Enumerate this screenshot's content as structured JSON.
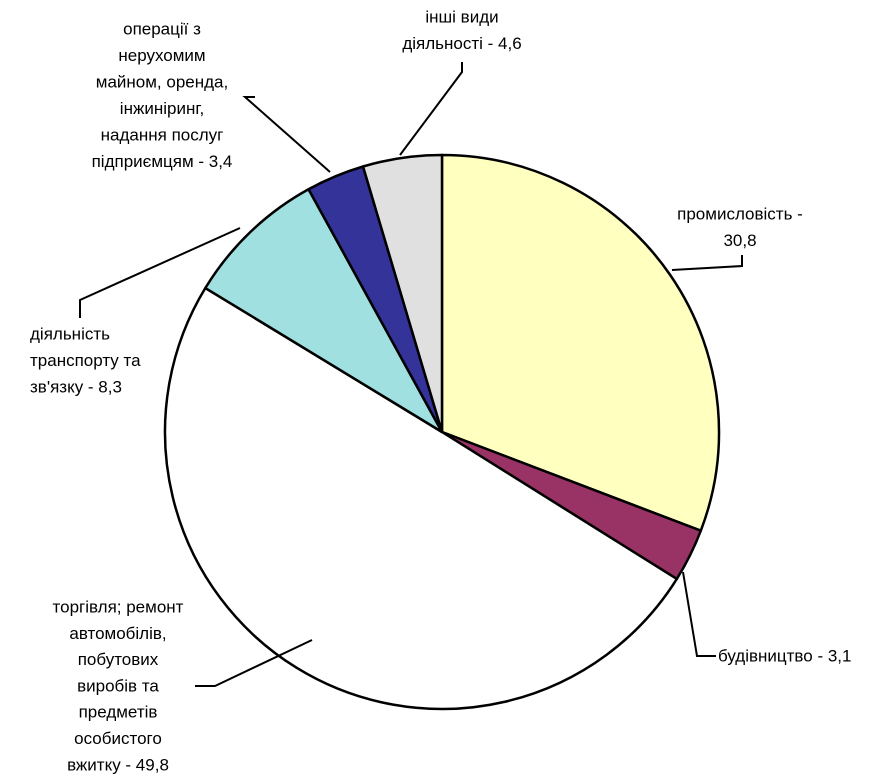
{
  "chart_data": {
    "type": "pie",
    "categories": [
      [
        "промисловість -",
        "30,8"
      ],
      [
        "будівництво - 3,1"
      ],
      [
        "торгівля; ремонт",
        "автомобілів,",
        "побутових",
        "виробів та",
        "предметів",
        "особистого",
        "вжитку - 49,8"
      ],
      [
        "діяльність",
        "транспорту та",
        "зв'язку - 8,3"
      ],
      [
        "операції з",
        "нерухомим",
        "майном, оренда,",
        "інжиніринг,",
        "надання послуг",
        "підприємцям - 3,4"
      ],
      [
        "інші види",
        "діяльності - 4,6"
      ]
    ],
    "values": [
      30.8,
      3.1,
      49.8,
      8.3,
      3.4,
      4.6
    ],
    "colors": [
      "#ffffc0",
      "#993366",
      "#ffffff",
      "#a0e0e0",
      "#333399",
      "#e0e0e0"
    ]
  }
}
